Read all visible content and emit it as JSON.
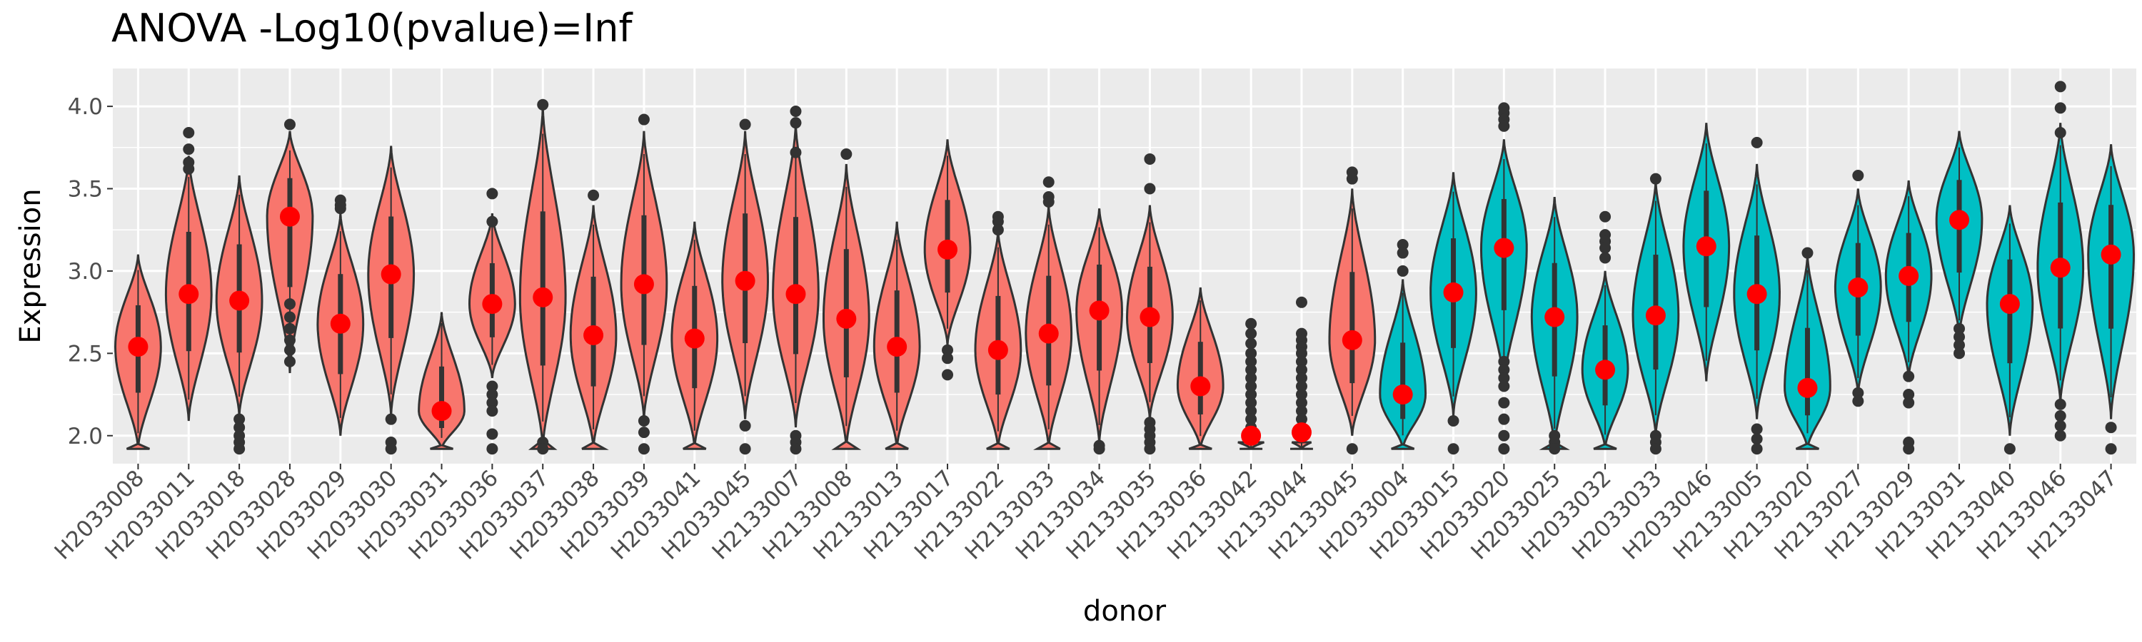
{
  "chart_data": {
    "type": "violin",
    "title": "ANOVA -Log10(pvalue)=Inf",
    "xlabel": "donor",
    "ylabel": "Expression",
    "ylim": [
      1.83,
      4.23
    ],
    "yticks": [
      2.0,
      2.5,
      3.0,
      3.5,
      4.0
    ],
    "ytick_labels": [
      "2.0",
      "2.5",
      "3.0",
      "3.5",
      "4.0"
    ],
    "grid": true,
    "legend": "none",
    "colors": {
      "group1": "#F8766D",
      "group2": "#00BFC4",
      "mean_point": "#FF0000",
      "panel_bg": "#EBEBEB",
      "grid": "#FFFFFF",
      "outline": "#333333"
    },
    "donors": [
      {
        "name": "H2033008",
        "group": 1,
        "min": 1.92,
        "max": 3.1,
        "mean": 2.54,
        "outliers": []
      },
      {
        "name": "H2033011",
        "group": 1,
        "min": 2.09,
        "max": 3.7,
        "mean": 2.86,
        "outliers": [
          3.84,
          3.74,
          3.66,
          3.62
        ]
      },
      {
        "name": "H2033018",
        "group": 1,
        "min": 2.12,
        "max": 3.58,
        "mean": 2.82,
        "outliers": [
          2.1,
          2.05,
          2.0,
          1.96,
          1.92
        ]
      },
      {
        "name": "H2033028",
        "group": 1,
        "min": 2.38,
        "max": 3.85,
        "mean": 3.33,
        "outliers": [
          3.89,
          2.8,
          2.72,
          2.65,
          2.58,
          2.52,
          2.45
        ]
      },
      {
        "name": "H2033029",
        "group": 1,
        "min": 2.0,
        "max": 3.35,
        "mean": 2.68,
        "outliers": [
          3.43,
          3.4,
          3.38
        ]
      },
      {
        "name": "H2033030",
        "group": 1,
        "min": 2.12,
        "max": 3.76,
        "mean": 2.98,
        "outliers": [
          2.1,
          1.96,
          1.92
        ]
      },
      {
        "name": "H2033031",
        "group": 1,
        "min": 1.92,
        "max": 2.75,
        "mean": 2.15,
        "outliers": []
      },
      {
        "name": "H2033036",
        "group": 1,
        "min": 2.35,
        "max": 3.35,
        "mean": 2.8,
        "outliers": [
          3.47,
          3.3,
          2.3,
          2.25,
          2.2,
          2.15,
          2.01,
          1.92
        ]
      },
      {
        "name": "H2033037",
        "group": 1,
        "min": 1.92,
        "max": 4.0,
        "mean": 2.84,
        "outliers": [
          4.01,
          1.96,
          1.92
        ]
      },
      {
        "name": "H2033038",
        "group": 1,
        "min": 1.92,
        "max": 3.4,
        "mean": 2.61,
        "outliers": [
          3.46
        ]
      },
      {
        "name": "H2033039",
        "group": 1,
        "min": 2.1,
        "max": 3.85,
        "mean": 2.92,
        "outliers": [
          3.92,
          2.09,
          2.02,
          1.92
        ]
      },
      {
        "name": "H2033041",
        "group": 1,
        "min": 1.92,
        "max": 3.3,
        "mean": 2.59,
        "outliers": []
      },
      {
        "name": "H2033045",
        "group": 1,
        "min": 2.1,
        "max": 3.85,
        "mean": 2.94,
        "outliers": [
          3.89,
          2.06,
          1.92
        ]
      },
      {
        "name": "H2133007",
        "group": 1,
        "min": 2.05,
        "max": 3.9,
        "mean": 2.86,
        "outliers": [
          3.97,
          3.9,
          3.72,
          2.0,
          1.96,
          1.92
        ]
      },
      {
        "name": "H2133008",
        "group": 1,
        "min": 1.92,
        "max": 3.65,
        "mean": 2.71,
        "outliers": [
          3.71
        ]
      },
      {
        "name": "H2133013",
        "group": 1,
        "min": 1.92,
        "max": 3.3,
        "mean": 2.54,
        "outliers": []
      },
      {
        "name": "H2133017",
        "group": 1,
        "min": 2.55,
        "max": 3.8,
        "mean": 3.13,
        "outliers": [
          2.52,
          2.47,
          2.37
        ]
      },
      {
        "name": "H2133022",
        "group": 1,
        "min": 1.92,
        "max": 3.25,
        "mean": 2.52,
        "outliers": [
          3.33,
          3.3,
          3.25
        ]
      },
      {
        "name": "H2133033",
        "group": 1,
        "min": 1.92,
        "max": 3.4,
        "mean": 2.62,
        "outliers": [
          3.54,
          3.45,
          3.42
        ]
      },
      {
        "name": "H2133034",
        "group": 1,
        "min": 1.95,
        "max": 3.38,
        "mean": 2.76,
        "outliers": [
          1.94,
          1.92
        ]
      },
      {
        "name": "H2133035",
        "group": 1,
        "min": 2.1,
        "max": 3.4,
        "mean": 2.72,
        "outliers": [
          3.68,
          3.5,
          2.08,
          2.04,
          2.0,
          1.96,
          1.92
        ]
      },
      {
        "name": "H2133036",
        "group": 1,
        "min": 1.92,
        "max": 2.9,
        "mean": 2.3,
        "outliers": []
      },
      {
        "name": "H2133042",
        "group": 1,
        "min": 1.92,
        "max": 1.96,
        "mean": 2.0,
        "outliers": [
          2.68,
          2.62,
          2.56,
          2.5,
          2.45,
          2.4,
          2.35,
          2.3,
          2.25,
          2.2,
          2.15,
          2.1,
          2.05
        ]
      },
      {
        "name": "H2133044",
        "group": 1,
        "min": 1.92,
        "max": 1.96,
        "mean": 2.02,
        "outliers": [
          2.81,
          2.62,
          2.58,
          2.54,
          2.5,
          2.45,
          2.4,
          2.35,
          2.3,
          2.25,
          2.2,
          2.15,
          2.1,
          2.05
        ]
      },
      {
        "name": "H2133045",
        "group": 1,
        "min": 2.0,
        "max": 3.5,
        "mean": 2.58,
        "outliers": [
          3.6,
          3.56,
          1.92
        ]
      },
      {
        "name": "H2033004",
        "group": 2,
        "min": 1.92,
        "max": 2.95,
        "mean": 2.25,
        "outliers": [
          3.16,
          3.11,
          3.0
        ]
      },
      {
        "name": "H2033015",
        "group": 2,
        "min": 2.12,
        "max": 3.6,
        "mean": 2.87,
        "outliers": [
          2.09,
          1.92
        ]
      },
      {
        "name": "H2033020",
        "group": 2,
        "min": 2.3,
        "max": 3.8,
        "mean": 3.14,
        "outliers": [
          3.99,
          3.96,
          3.92,
          3.88,
          2.45,
          2.4,
          2.35,
          2.3,
          2.2,
          2.1,
          2.0,
          1.92
        ]
      },
      {
        "name": "H2033025",
        "group": 2,
        "min": 1.92,
        "max": 3.45,
        "mean": 2.72,
        "outliers": [
          2.0,
          1.96,
          1.92
        ]
      },
      {
        "name": "H2033032",
        "group": 2,
        "min": 1.92,
        "max": 3.0,
        "mean": 2.4,
        "outliers": [
          3.33,
          3.22,
          3.18,
          3.14,
          3.08
        ]
      },
      {
        "name": "H2033033",
        "group": 2,
        "min": 2.0,
        "max": 3.55,
        "mean": 2.73,
        "outliers": [
          3.56,
          2.0,
          1.96,
          1.92
        ]
      },
      {
        "name": "H2033046",
        "group": 2,
        "min": 2.33,
        "max": 3.9,
        "mean": 3.15,
        "outliers": []
      },
      {
        "name": "H2133005",
        "group": 2,
        "min": 2.1,
        "max": 3.65,
        "mean": 2.86,
        "outliers": [
          3.78,
          2.04,
          1.98,
          1.92
        ]
      },
      {
        "name": "H2133020",
        "group": 2,
        "min": 1.92,
        "max": 3.1,
        "mean": 2.29,
        "outliers": [
          3.11
        ]
      },
      {
        "name": "H2133027",
        "group": 2,
        "min": 2.25,
        "max": 3.5,
        "mean": 2.9,
        "outliers": [
          3.58,
          2.26,
          2.21
        ]
      },
      {
        "name": "H2133029",
        "group": 2,
        "min": 2.35,
        "max": 3.55,
        "mean": 2.97,
        "outliers": [
          2.36,
          2.25,
          2.2,
          1.96,
          1.92
        ]
      },
      {
        "name": "H2133031",
        "group": 2,
        "min": 2.6,
        "max": 3.85,
        "mean": 3.31,
        "outliers": [
          2.65,
          2.6,
          2.55,
          2.5
        ]
      },
      {
        "name": "H2133040",
        "group": 2,
        "min": 2.0,
        "max": 3.4,
        "mean": 2.8,
        "outliers": [
          1.92
        ]
      },
      {
        "name": "H2133046",
        "group": 2,
        "min": 2.2,
        "max": 3.9,
        "mean": 3.02,
        "outliers": [
          4.12,
          3.99,
          3.84,
          2.19,
          2.12,
          2.06,
          2.0
        ]
      },
      {
        "name": "H2133047",
        "group": 2,
        "min": 2.1,
        "max": 3.77,
        "mean": 3.1,
        "outliers": [
          2.05,
          1.92
        ]
      }
    ]
  }
}
